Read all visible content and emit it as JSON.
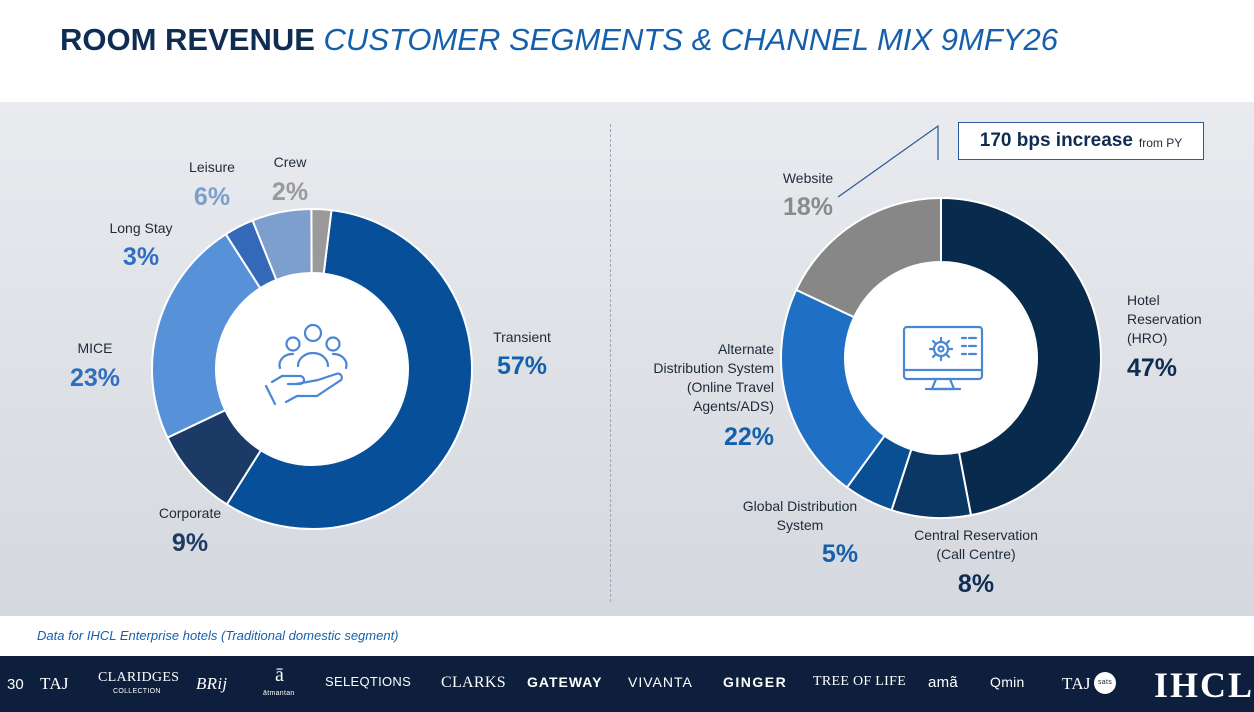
{
  "header": {
    "title_bold": "ROOM REVENUE",
    "title_italic": "CUSTOMER SEGMENTS & CHANNEL MIX 9MFY26"
  },
  "chart_data": [
    {
      "type": "pie",
      "title": "Customer Segments",
      "categories": [
        "Transient",
        "Corporate",
        "MICE",
        "Long Stay",
        "Leisure",
        "Crew"
      ],
      "values": [
        57,
        9,
        23,
        3,
        6,
        2
      ],
      "value_labels": [
        "57%",
        "9%",
        "23%",
        "3%",
        "6%",
        "2%"
      ],
      "colors": [
        "#075099",
        "#1b3a65",
        "#5791d8",
        "#3468b8",
        "#7d9fce",
        "#9a9a9a"
      ],
      "label_colors": [
        "#1560ad",
        "#1b3a65",
        "#2f6fbf",
        "#2f6fbf",
        "#7d9fce",
        "#9a9a9a"
      ],
      "center_icon": "customer-care-icon"
    },
    {
      "type": "pie",
      "title": "Channel Mix",
      "categories": [
        "Hotel Reservation (HRO)",
        "Central Reservation (Call Centre)",
        "Global Distribution System",
        "Alternate Distribution System (Online Travel Agents/ADS)",
        "Website"
      ],
      "label_lines": [
        [
          "Hotel",
          "Reservation",
          "(HRO)"
        ],
        [
          "Central Reservation",
          "(Call Centre)"
        ],
        [
          "Global Distribution",
          "System"
        ],
        [
          "Alternate",
          "Distribution System",
          "(Online Travel",
          "Agents/ADS)"
        ],
        [
          "Website"
        ]
      ],
      "values": [
        47,
        8,
        5,
        22,
        18
      ],
      "value_labels": [
        "47%",
        "8%",
        "5%",
        "22%",
        "18%"
      ],
      "colors": [
        "#082a4c",
        "#0a3763",
        "#0a4f94",
        "#1f6fc4",
        "#878787"
      ],
      "label_colors": [
        "#0f2d52",
        "#0f2d52",
        "#1560ad",
        "#1560ad",
        "#8a8a8a"
      ],
      "center_icon": "computer-settings-icon",
      "callout": {
        "bold": "170 bps increase",
        "small": "from PY"
      }
    }
  ],
  "footnote": "Data for IHCL Enterprise hotels (Traditional domestic segment)",
  "footer": {
    "page_number": "30",
    "brands": [
      "TAJ",
      "CLARIDGES",
      "COLLECTION",
      "BRij",
      "ā",
      "ātmantan",
      "SELEQTIONS",
      "CLARKS",
      "GATEWAY",
      "VIVANTA",
      "GINGER",
      "TREE OF LIFE",
      "amã",
      "Qmin",
      "TAJ",
      "sats"
    ],
    "logo": "IHCL"
  }
}
